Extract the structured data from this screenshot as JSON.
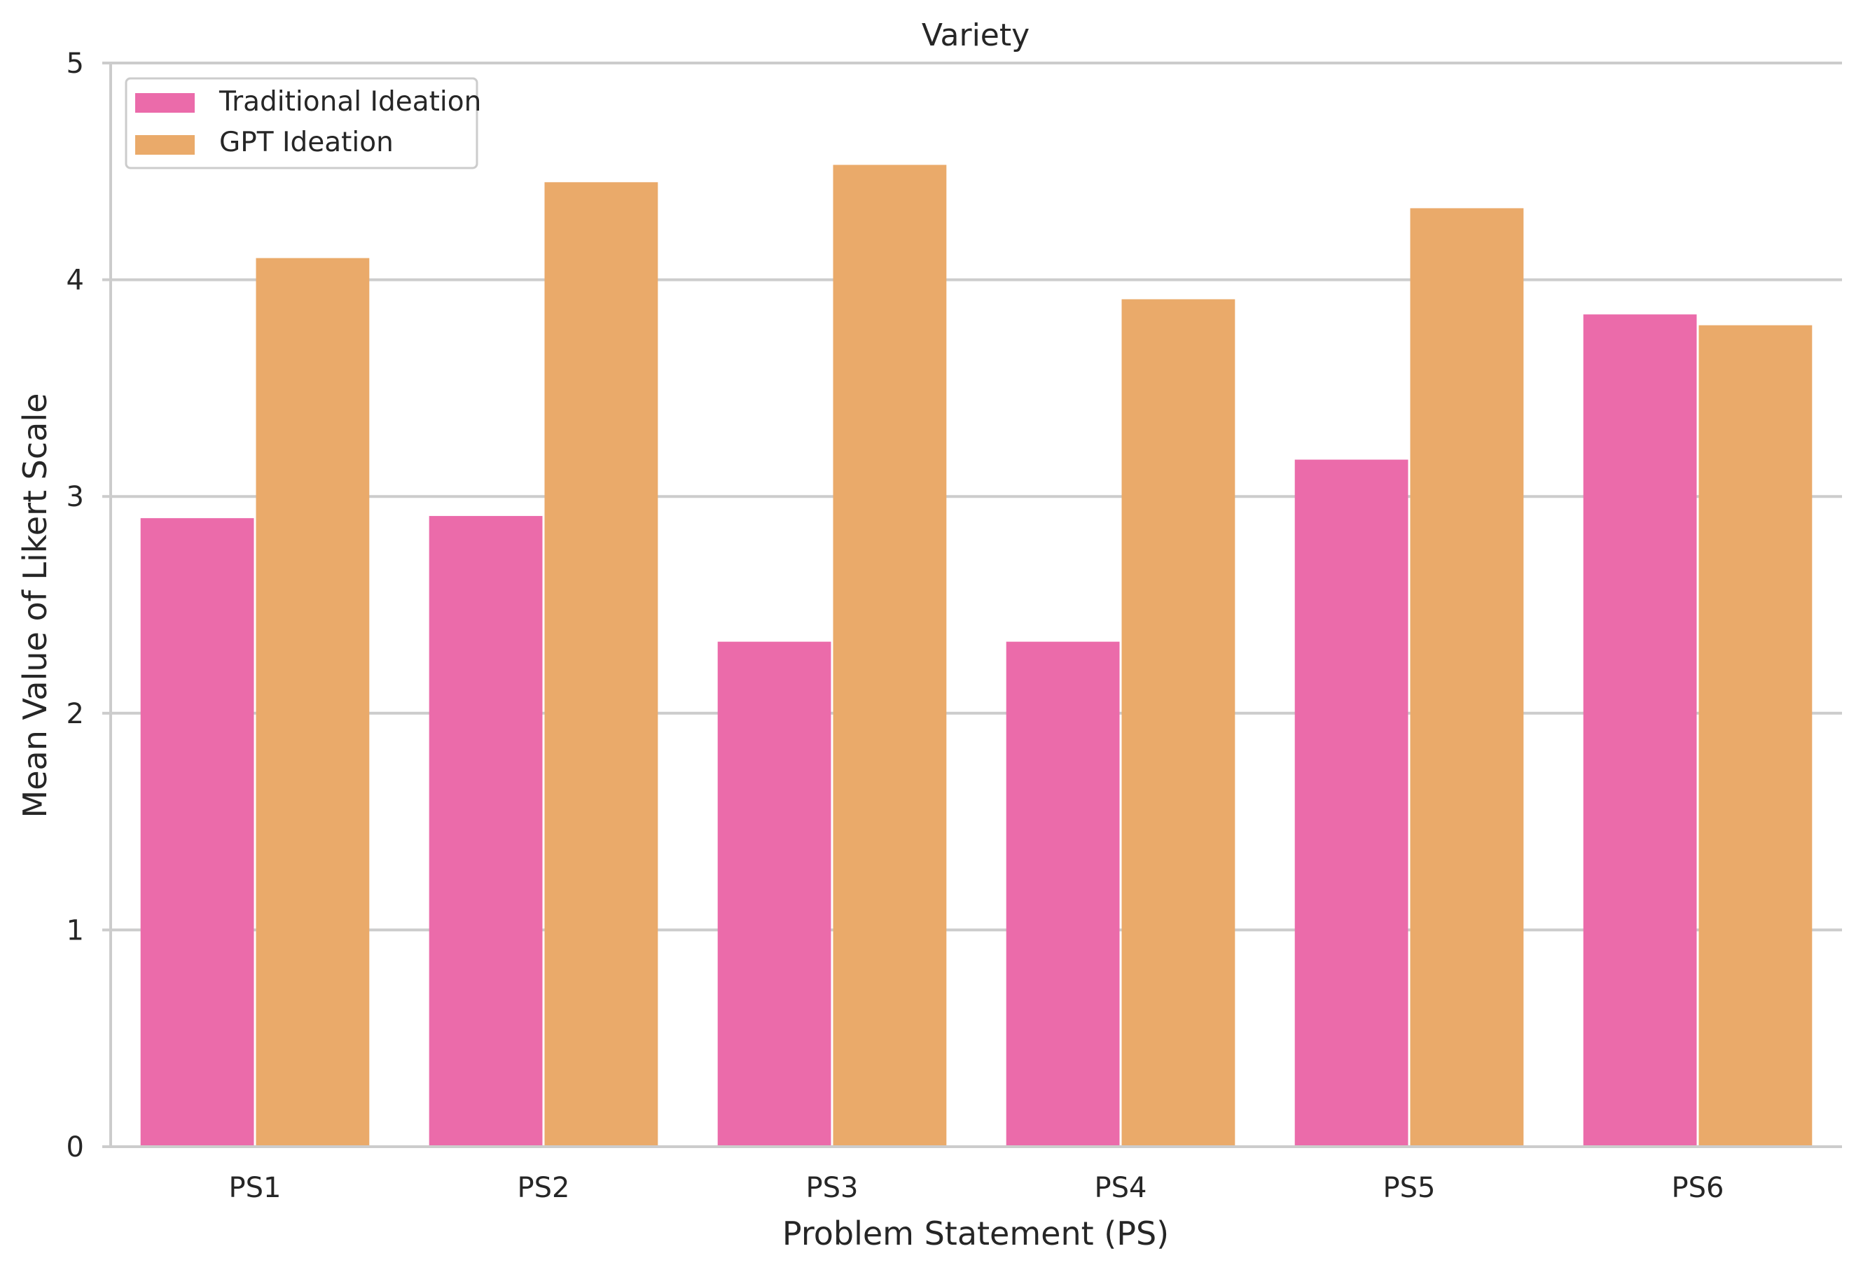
{
  "chart_data": {
    "type": "bar",
    "title": "Variety",
    "xlabel": "Problem Statement (PS)",
    "ylabel": "Mean Value of Likert Scale",
    "categories": [
      "PS1",
      "PS2",
      "PS3",
      "PS4",
      "PS5",
      "PS6"
    ],
    "series": [
      {
        "name": "Traditional Ideation",
        "color": "#EB6BAA",
        "values": [
          2.9,
          2.91,
          2.33,
          2.33,
          3.17,
          3.84
        ]
      },
      {
        "name": "GPT Ideation",
        "color": "#EAAA6A",
        "values": [
          4.1,
          4.45,
          4.53,
          3.91,
          4.33,
          3.79
        ]
      }
    ],
    "ylim": [
      0,
      5
    ],
    "yticks": [
      0,
      1,
      2,
      3,
      4,
      5
    ],
    "grid": "horizontal",
    "legend_position": "top-left"
  }
}
